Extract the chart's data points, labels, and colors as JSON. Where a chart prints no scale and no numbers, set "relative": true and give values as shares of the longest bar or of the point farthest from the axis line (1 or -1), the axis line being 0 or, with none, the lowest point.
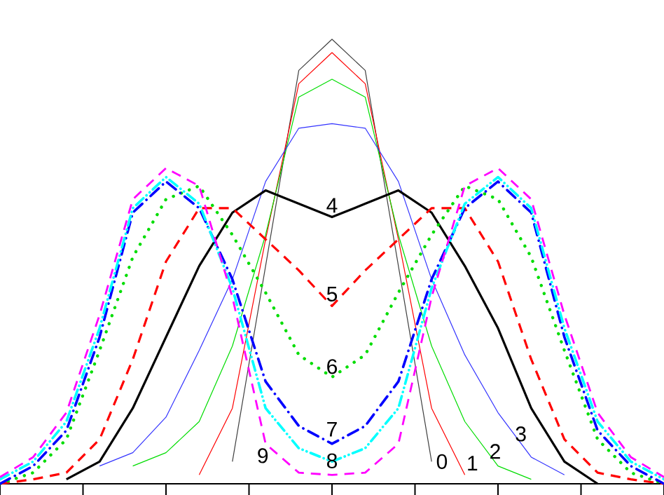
{
  "chart_data": {
    "type": "line",
    "relative": true,
    "categories": [
      null,
      null,
      null,
      null,
      null,
      null,
      null,
      null,
      null,
      null,
      null,
      null,
      null,
      null,
      null,
      null,
      null,
      null,
      null,
      null,
      null
    ],
    "series": [
      {
        "name": "0",
        "color": "#404040",
        "line_style": "solid",
        "values": [
          null,
          null,
          null,
          null,
          null,
          null,
          null,
          0.05,
          0.49,
          0.93,
          1.0,
          0.93,
          0.49,
          0.05,
          null,
          null,
          null,
          null,
          null,
          null,
          null
        ]
      },
      {
        "name": "1",
        "color": "#ff0000",
        "line_style": "solid",
        "values": [
          null,
          null,
          null,
          null,
          null,
          null,
          0.02,
          0.17,
          0.55,
          0.9,
          0.97,
          0.9,
          0.55,
          0.17,
          0.02,
          null,
          null,
          null,
          null,
          null,
          null
        ]
      },
      {
        "name": "2",
        "color": "#00dd00",
        "line_style": "solid",
        "values": [
          null,
          null,
          null,
          null,
          0.04,
          0.07,
          0.14,
          0.31,
          0.56,
          0.87,
          0.91,
          0.87,
          0.56,
          0.31,
          0.14,
          0.04,
          0.01,
          null,
          null,
          null,
          null
        ]
      },
      {
        "name": "3",
        "color": "#3333ff",
        "line_style": "solid",
        "values": [
          null,
          null,
          null,
          0.04,
          0.07,
          0.15,
          0.3,
          0.46,
          0.68,
          0.8,
          0.81,
          0.8,
          0.68,
          0.46,
          0.29,
          0.16,
          0.06,
          0.02,
          null,
          null,
          null
        ]
      },
      {
        "name": "4",
        "color": "#000000",
        "line_style": "solid",
        "values": [
          null,
          null,
          0.01,
          0.05,
          0.17,
          0.33,
          0.49,
          0.61,
          0.66,
          0.63,
          0.6,
          0.63,
          0.66,
          0.61,
          0.49,
          0.35,
          0.17,
          0.05,
          0,
          null,
          null
        ]
      },
      {
        "name": "5",
        "color": "#ff0000",
        "line_style": "dashed",
        "values": [
          0,
          0.01,
          0.025,
          0.1,
          0.28,
          0.5,
          0.62,
          0.62,
          0.55,
          0.48,
          0.4,
          0.48,
          0.55,
          0.62,
          0.62,
          0.5,
          0.28,
          0.1,
          0.025,
          0.01,
          0
        ]
      },
      {
        "name": "6",
        "color": "#00dd00",
        "line_style": "dotted",
        "values": [
          0,
          0.025,
          0.1,
          0.3,
          0.51,
          0.64,
          0.67,
          0.56,
          0.43,
          0.29,
          0.24,
          0.29,
          0.43,
          0.56,
          0.67,
          0.64,
          0.51,
          0.3,
          0.1,
          0.025,
          0
        ]
      },
      {
        "name": "7",
        "color": "#0000ff",
        "line_style": "dashdot",
        "values": [
          0,
          0.04,
          0.12,
          0.33,
          0.61,
          0.68,
          0.62,
          0.46,
          0.23,
          0.13,
          0.09,
          0.13,
          0.23,
          0.46,
          0.62,
          0.68,
          0.61,
          0.33,
          0.12,
          0.04,
          0
        ]
      },
      {
        "name": "8",
        "color": "#00ffff",
        "line_style": "dashdotdot",
        "values": [
          0.01,
          0.05,
          0.14,
          0.35,
          0.62,
          0.69,
          0.63,
          0.44,
          0.17,
          0.08,
          0.05,
          0.08,
          0.17,
          0.44,
          0.63,
          0.69,
          0.62,
          0.35,
          0.14,
          0.05,
          0.01
        ]
      },
      {
        "name": "9",
        "color": "#ff00ff",
        "line_style": "dashed",
        "values": [
          0.015,
          0.06,
          0.16,
          0.38,
          0.64,
          0.71,
          0.67,
          0.42,
          0.09,
          0.025,
          0.02,
          0.025,
          0.09,
          0.42,
          0.67,
          0.71,
          0.64,
          0.38,
          0.16,
          0.06,
          0.015
        ]
      }
    ]
  }
}
